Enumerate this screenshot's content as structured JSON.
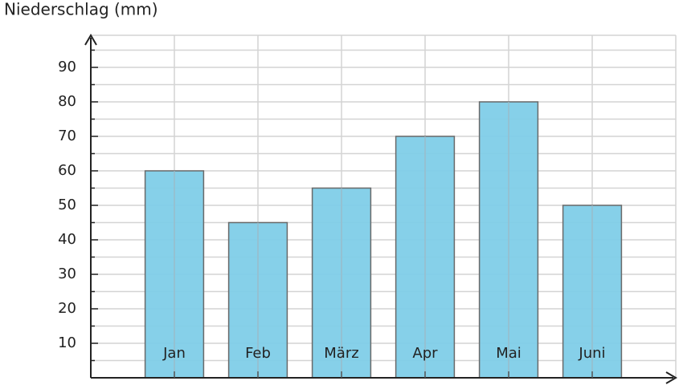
{
  "chart_data": {
    "type": "bar",
    "title": "Niederschlag (mm)",
    "categories": [
      "Jan",
      "Feb",
      "März",
      "Apr",
      "Mai",
      "Juni"
    ],
    "values": [
      60,
      45,
      55,
      70,
      80,
      50
    ],
    "color": "#7fcde8",
    "ylim": [
      0,
      100
    ],
    "yticks": [
      10,
      20,
      30,
      40,
      50,
      60,
      70,
      80,
      90
    ],
    "minor_yticks": [
      5,
      15,
      25,
      35,
      45,
      55,
      65,
      75,
      85,
      95
    ],
    "grid": true
  }
}
